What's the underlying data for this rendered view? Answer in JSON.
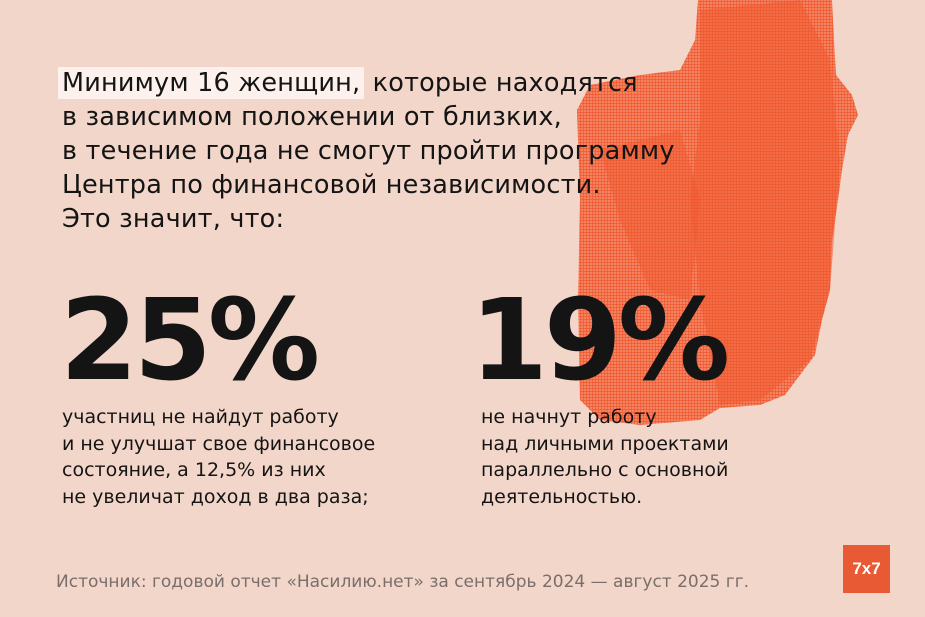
{
  "headline": {
    "highlight": "Минимум 16 женщин,",
    "rest_line1": " которые находятся",
    "line2": "в зависимом положении от близких,",
    "line3": "в течение года не смогут пройти программу",
    "line4": "Центра по финансовой независимости.",
    "line5": "Это значит, что:"
  },
  "stats": [
    {
      "value": "25%",
      "lines": [
        "участниц не найдут работу",
        "и не улучшат свое финансовое",
        "состояние, а 12,5% из них",
        "не увеличат доход в два раза;"
      ]
    },
    {
      "value": "19%",
      "lines": [
        "не начнут работу",
        "над личными проектами",
        "параллельно с основной",
        "деятельностью."
      ]
    }
  ],
  "source": "Источник: годовой отчет «Насилию.нет» за сентябрь 2024 — август 2025 гг.",
  "logo": "7x7",
  "colors": {
    "background": "#f3d6ca",
    "accent": "#f05a30",
    "highlight": "#fcf1ec"
  }
}
